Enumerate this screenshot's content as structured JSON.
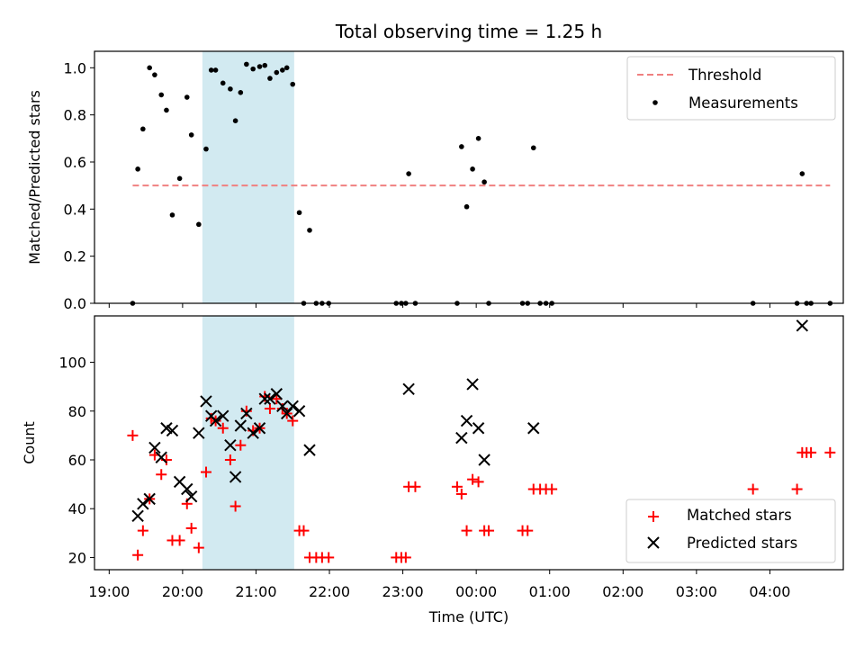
{
  "title": "Total observing time = 1.25 h",
  "chart_data": [
    {
      "type": "scatter",
      "panel": "top",
      "ylabel": "Matched/Predicted stars",
      "xlabel": "",
      "ylim": [
        0,
        1.07
      ],
      "yticks": [
        "0.0",
        "0.2",
        "0.4",
        "0.6",
        "0.8",
        "1.0"
      ],
      "ytick_values": [
        0,
        0.2,
        0.4,
        0.6,
        0.8,
        1.0
      ],
      "x_unit": "hours since 19:00 UTC",
      "xlim": [
        -0.2,
        10.0
      ],
      "highlight_span": [
        1.27,
        2.52
      ],
      "highlight_color": "#add8e6",
      "threshold": {
        "name": "Threshold",
        "y": 0.5,
        "x_range": [
          0.32,
          9.82
        ],
        "color": "#f08080"
      },
      "series": [
        {
          "name": "Measurements",
          "color": "#000000",
          "points": [
            [
              0.32,
              0.0
            ],
            [
              0.39,
              0.57
            ],
            [
              0.46,
              0.74
            ],
            [
              0.55,
              1.0
            ],
            [
              0.62,
              0.97
            ],
            [
              0.71,
              0.885
            ],
            [
              0.78,
              0.82
            ],
            [
              0.86,
              0.375
            ],
            [
              0.96,
              0.53
            ],
            [
              1.06,
              0.875
            ],
            [
              1.12,
              0.715
            ],
            [
              1.22,
              0.335
            ],
            [
              1.32,
              0.655
            ],
            [
              1.39,
              0.99
            ],
            [
              1.45,
              0.99
            ],
            [
              1.55,
              0.935
            ],
            [
              1.65,
              0.91
            ],
            [
              1.72,
              0.775
            ],
            [
              1.79,
              0.895
            ],
            [
              1.87,
              1.015
            ],
            [
              1.96,
              0.995
            ],
            [
              2.05,
              1.005
            ],
            [
              2.12,
              1.01
            ],
            [
              2.19,
              0.955
            ],
            [
              2.28,
              0.98
            ],
            [
              2.36,
              0.99
            ],
            [
              2.42,
              1.0
            ],
            [
              2.5,
              0.93
            ],
            [
              2.59,
              0.385
            ],
            [
              2.65,
              0.0
            ],
            [
              2.73,
              0.31
            ],
            [
              2.82,
              0.0
            ],
            [
              2.9,
              0.0
            ],
            [
              2.99,
              0.0
            ],
            [
              3.91,
              0.0
            ],
            [
              3.98,
              0.0
            ],
            [
              4.04,
              0.0
            ],
            [
              4.08,
              0.55
            ],
            [
              4.17,
              0.0
            ],
            [
              4.74,
              0.0
            ],
            [
              4.8,
              0.665
            ],
            [
              4.87,
              0.41
            ],
            [
              4.95,
              0.57
            ],
            [
              5.03,
              0.7
            ],
            [
              5.11,
              0.515
            ],
            [
              5.17,
              0.0
            ],
            [
              5.63,
              0.0
            ],
            [
              5.7,
              0.0
            ],
            [
              5.78,
              0.66
            ],
            [
              5.87,
              0.0
            ],
            [
              5.95,
              0.0
            ],
            [
              6.03,
              0.0
            ],
            [
              8.77,
              0.0
            ],
            [
              9.37,
              0.0
            ],
            [
              9.44,
              0.55
            ],
            [
              9.5,
              0.0
            ],
            [
              9.56,
              0.0
            ],
            [
              9.82,
              0.0
            ]
          ]
        }
      ],
      "legend": {
        "position": "upper right",
        "entries": [
          "Threshold",
          "Measurements"
        ]
      }
    },
    {
      "type": "scatter",
      "panel": "bottom",
      "ylabel": "Count",
      "xlabel": "Time (UTC)",
      "ylim": [
        15,
        119
      ],
      "yticks": [
        "20",
        "40",
        "60",
        "80",
        "100"
      ],
      "ytick_values": [
        20,
        40,
        60,
        80,
        100
      ],
      "x_unit": "hours since 19:00 UTC",
      "xlim": [
        -0.2,
        10.0
      ],
      "xticks": [
        "19:00",
        "20:00",
        "21:00",
        "22:00",
        "23:00",
        "00:00",
        "01:00",
        "02:00",
        "03:00",
        "04:00"
      ],
      "xtick_values": [
        0,
        1,
        2,
        3,
        4,
        5,
        6,
        7,
        8,
        9
      ],
      "highlight_span": [
        1.27,
        2.52
      ],
      "highlight_color": "#add8e6",
      "series": [
        {
          "name": "Matched stars",
          "marker": "plus",
          "color": "#ff0000",
          "points": [
            [
              0.32,
              70
            ],
            [
              0.39,
              21
            ],
            [
              0.46,
              31
            ],
            [
              0.55,
              44
            ],
            [
              0.62,
              62
            ],
            [
              0.71,
              54
            ],
            [
              0.78,
              60
            ],
            [
              0.86,
              27
            ],
            [
              0.96,
              27
            ],
            [
              1.06,
              42
            ],
            [
              1.12,
              32
            ],
            [
              1.22,
              24
            ],
            [
              1.32,
              55
            ],
            [
              1.39,
              77
            ],
            [
              1.45,
              76
            ],
            [
              1.55,
              73
            ],
            [
              1.65,
              60
            ],
            [
              1.72,
              41
            ],
            [
              1.79,
              66
            ],
            [
              1.87,
              80
            ],
            [
              1.96,
              72
            ],
            [
              2.05,
              73
            ],
            [
              2.12,
              86
            ],
            [
              2.19,
              81
            ],
            [
              2.28,
              85
            ],
            [
              2.36,
              81
            ],
            [
              2.42,
              79
            ],
            [
              2.5,
              76
            ],
            [
              2.59,
              31
            ],
            [
              2.65,
              31
            ],
            [
              2.73,
              20
            ],
            [
              2.82,
              20
            ],
            [
              2.9,
              20
            ],
            [
              2.99,
              20
            ],
            [
              3.91,
              20
            ],
            [
              3.98,
              20
            ],
            [
              4.04,
              20
            ],
            [
              4.08,
              49
            ],
            [
              4.17,
              49
            ],
            [
              4.74,
              49
            ],
            [
              4.8,
              46
            ],
            [
              4.87,
              31
            ],
            [
              4.95,
              52
            ],
            [
              5.03,
              51
            ],
            [
              5.11,
              31
            ],
            [
              5.17,
              31
            ],
            [
              5.63,
              31
            ],
            [
              5.7,
              31
            ],
            [
              5.78,
              48
            ],
            [
              5.87,
              48
            ],
            [
              5.95,
              48
            ],
            [
              6.03,
              48
            ],
            [
              8.77,
              48
            ],
            [
              9.37,
              48
            ],
            [
              9.44,
              63
            ],
            [
              9.5,
              63
            ],
            [
              9.56,
              63
            ],
            [
              9.82,
              63
            ]
          ]
        },
        {
          "name": "Predicted stars",
          "marker": "x",
          "color": "#000000",
          "points": [
            [
              0.39,
              37
            ],
            [
              0.46,
              42
            ],
            [
              0.55,
              44
            ],
            [
              0.62,
              65
            ],
            [
              0.71,
              61
            ],
            [
              0.78,
              73
            ],
            [
              0.86,
              72
            ],
            [
              0.96,
              51
            ],
            [
              1.06,
              48
            ],
            [
              1.12,
              45
            ],
            [
              1.22,
              71
            ],
            [
              1.32,
              84
            ],
            [
              1.39,
              78
            ],
            [
              1.45,
              76
            ],
            [
              1.55,
              78
            ],
            [
              1.65,
              66
            ],
            [
              1.72,
              53
            ],
            [
              1.79,
              74
            ],
            [
              1.87,
              79
            ],
            [
              1.96,
              71
            ],
            [
              2.05,
              73
            ],
            [
              2.12,
              85
            ],
            [
              2.19,
              85
            ],
            [
              2.28,
              87
            ],
            [
              2.36,
              82
            ],
            [
              2.42,
              79
            ],
            [
              2.5,
              82
            ],
            [
              2.59,
              80
            ],
            [
              2.73,
              64
            ],
            [
              4.08,
              89
            ],
            [
              4.8,
              69
            ],
            [
              4.87,
              76
            ],
            [
              4.95,
              91
            ],
            [
              5.03,
              73
            ],
            [
              5.11,
              60
            ],
            [
              5.78,
              73
            ],
            [
              9.44,
              115
            ]
          ]
        }
      ],
      "legend": {
        "position": "lower right",
        "entries": [
          "Matched stars",
          "Predicted stars"
        ]
      }
    }
  ]
}
